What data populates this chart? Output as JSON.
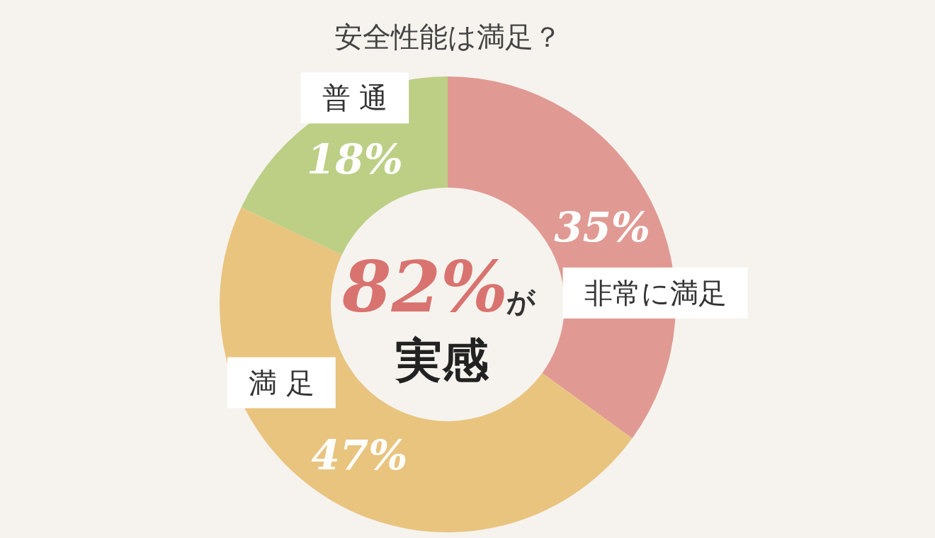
{
  "chart_data": {
    "type": "donut",
    "title": "安全性能は満足？",
    "categories": [
      "非常に満足",
      "満 足",
      "普 通"
    ],
    "values": [
      35,
      47,
      18
    ],
    "colors": [
      "#e09a93",
      "#e9c47f",
      "#bccf85"
    ],
    "value_labels": [
      "35%",
      "47%",
      "18%"
    ],
    "annotations": [
      "82%",
      "が",
      "実感"
    ]
  }
}
